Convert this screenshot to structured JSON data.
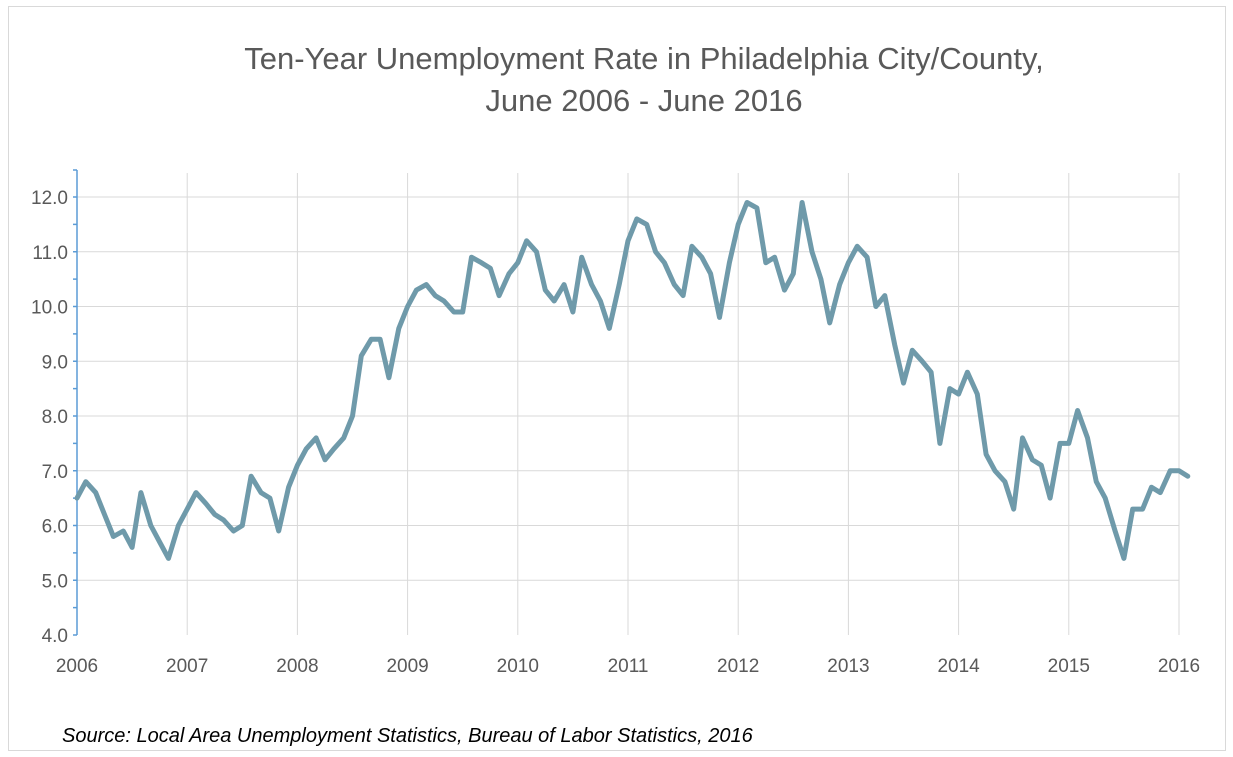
{
  "chart_data": {
    "type": "line",
    "title": "Ten-Year Unemployment Rate in Philadelphia City/County,",
    "subtitle": "June 2006 - June 2016",
    "source": "Source: Local Area Unemployment Statistics, Bureau of Labor Statistics, 2016",
    "xlim": [
      2006,
      2016
    ],
    "ylim": [
      4.0,
      12.0
    ],
    "x_tick_labels": [
      "2006",
      "2007",
      "2008",
      "2009",
      "2010",
      "2011",
      "2012",
      "2013",
      "2014",
      "2015",
      "2016"
    ],
    "y_tick_labels": [
      "4.0",
      "5.0",
      "6.0",
      "7.0",
      "8.0",
      "9.0",
      "10.0",
      "11.0",
      "12.0"
    ],
    "grid": true,
    "line_color": "#6f9aaa",
    "axis_color": "#5b9bd5",
    "series": [
      {
        "x": [
          2006.0,
          2006.08,
          2006.17,
          2006.25,
          2006.33,
          2006.42,
          2006.5,
          2006.58,
          2006.67,
          2006.75,
          2006.83,
          2006.92,
          2007.0,
          2007.08,
          2007.17,
          2007.25,
          2007.33,
          2007.42,
          2007.5,
          2007.58,
          2007.67,
          2007.75,
          2007.83,
          2007.92,
          2008.0,
          2008.08,
          2008.17,
          2008.25,
          2008.33,
          2008.42,
          2008.5,
          2008.58,
          2008.67,
          2008.75,
          2008.83,
          2008.92,
          2009.0,
          2009.08,
          2009.17,
          2009.25,
          2009.33,
          2009.42,
          2009.5,
          2009.58,
          2009.67,
          2009.75,
          2009.83,
          2009.92,
          2010.0,
          2010.08,
          2010.17,
          2010.25,
          2010.33,
          2010.42,
          2010.5,
          2010.58,
          2010.67,
          2010.75,
          2010.83,
          2010.92,
          2011.0,
          2011.08,
          2011.17,
          2011.25,
          2011.33,
          2011.42,
          2011.5,
          2011.58,
          2011.67,
          2011.75,
          2011.83,
          2011.92,
          2012.0,
          2012.08,
          2012.17,
          2012.25,
          2012.33,
          2012.42,
          2012.5,
          2012.58,
          2012.67,
          2012.75,
          2012.83,
          2012.92,
          2013.0,
          2013.08,
          2013.17,
          2013.25,
          2013.33,
          2013.42,
          2013.5,
          2013.58,
          2013.67,
          2013.75,
          2013.83,
          2013.92,
          2014.0,
          2014.08,
          2014.17,
          2014.25,
          2014.33,
          2014.42,
          2014.5,
          2014.58,
          2014.67,
          2014.75,
          2014.83,
          2014.92,
          2015.0,
          2015.08,
          2015.17,
          2015.25,
          2015.33,
          2015.42,
          2015.5,
          2015.58,
          2015.67,
          2015.75,
          2015.83,
          2015.92,
          2016.0,
          2016.08
        ],
        "values": [
          6.5,
          6.8,
          6.6,
          6.2,
          5.8,
          5.9,
          5.6,
          6.6,
          6.0,
          5.7,
          5.4,
          6.0,
          6.3,
          6.6,
          6.4,
          6.2,
          6.1,
          5.9,
          6.0,
          6.9,
          6.6,
          6.5,
          5.9,
          6.7,
          7.1,
          7.4,
          7.6,
          7.2,
          7.4,
          7.6,
          8.0,
          9.1,
          9.4,
          9.4,
          8.7,
          9.6,
          10.0,
          10.3,
          10.4,
          10.2,
          10.1,
          9.9,
          9.9,
          10.9,
          10.8,
          10.7,
          10.2,
          10.6,
          10.8,
          11.2,
          11.0,
          10.3,
          10.1,
          10.4,
          9.9,
          10.9,
          10.4,
          10.1,
          9.6,
          10.4,
          11.2,
          11.6,
          11.5,
          11.0,
          10.8,
          10.4,
          10.2,
          11.1,
          10.9,
          10.6,
          9.8,
          10.8,
          11.5,
          11.9,
          11.8,
          10.8,
          10.9,
          10.3,
          10.6,
          11.9,
          11.0,
          10.5,
          9.7,
          10.4,
          10.8,
          11.1,
          10.9,
          10.0,
          10.2,
          9.3,
          8.6,
          9.2,
          9.0,
          8.8,
          7.5,
          8.5,
          8.4,
          8.8,
          8.4,
          7.3,
          7.0,
          6.8,
          6.3,
          7.6,
          7.2,
          7.1,
          6.5,
          7.5,
          7.5,
          8.1,
          7.6,
          6.8,
          6.5,
          5.9,
          5.4,
          6.3,
          6.3,
          6.7,
          6.6,
          7.0,
          7.0,
          6.9
        ]
      }
    ]
  }
}
